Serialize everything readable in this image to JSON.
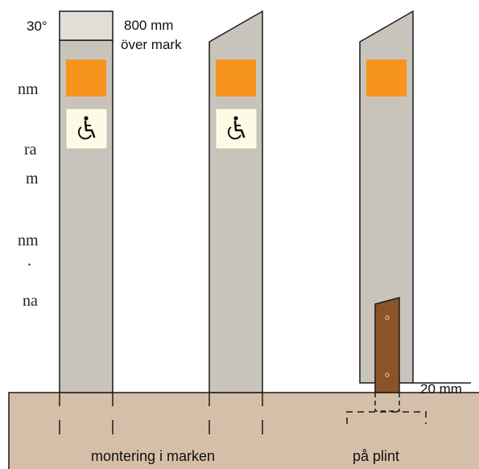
{
  "colors": {
    "post": "#c8c4bb",
    "post_cap": "#e1ded8",
    "marker": "#f7941d",
    "sign_bg": "#fdfbe6",
    "ground": "#d6bfa8",
    "wood": "#8a5427",
    "line": "#1a1a1a"
  },
  "icons": [
    "wheelchair-icon"
  ],
  "labels": {
    "angle": "30°",
    "height_value": "800 mm",
    "height_desc": "över mark",
    "plinth_gap": "20 mm",
    "ground_mount": "montering i marken",
    "plinth_mount": "på plint"
  },
  "left_text_fragments": [
    "nm",
    "ra",
    "m",
    "nm",
    ".",
    "na"
  ]
}
